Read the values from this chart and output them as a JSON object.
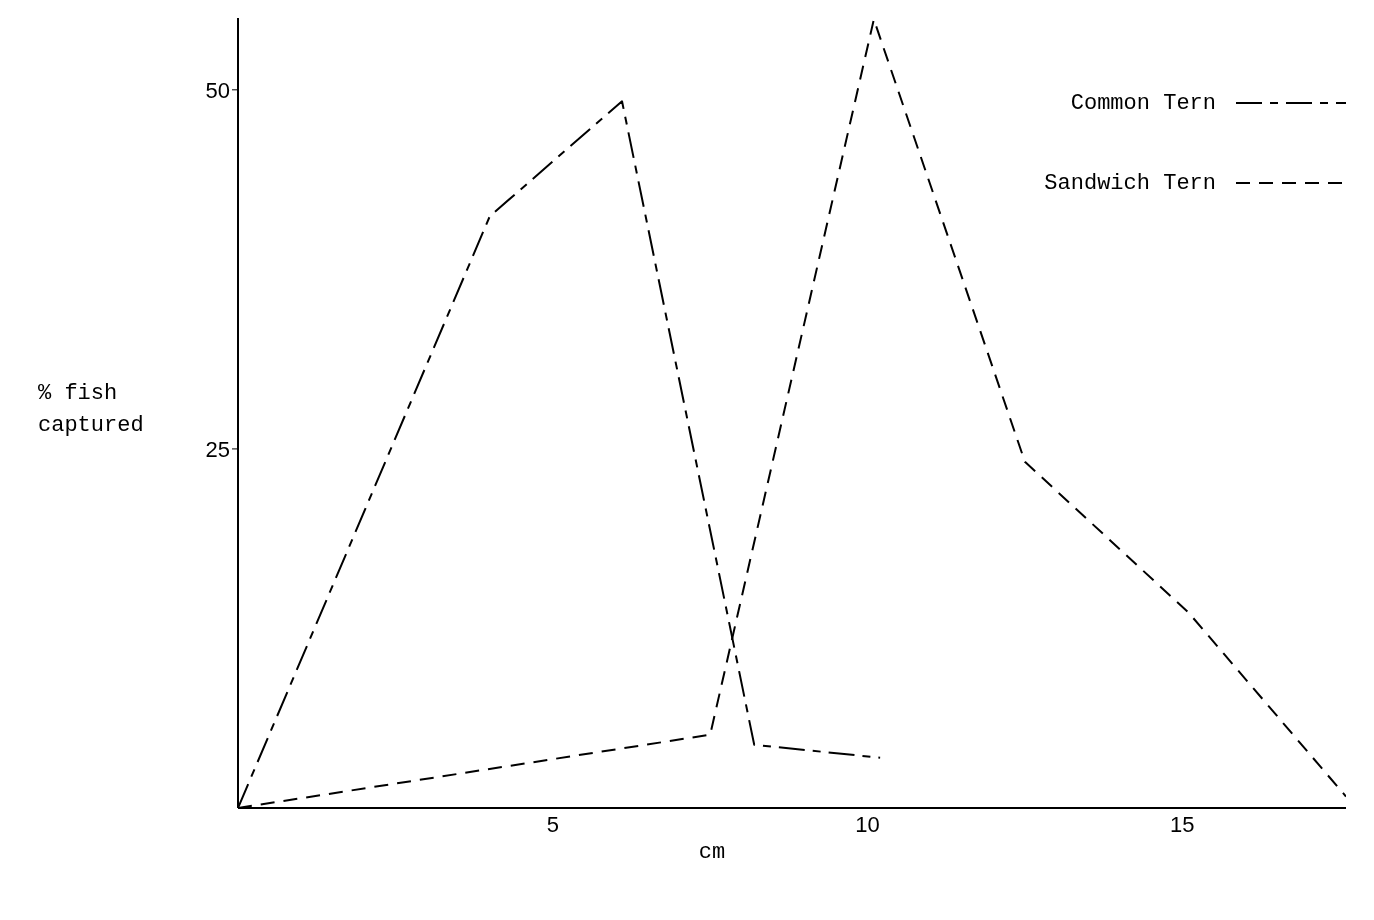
{
  "chart_data": {
    "type": "line",
    "xlabel": "cm",
    "ylabel": "% fish captured",
    "xlim": [
      0,
      17.6
    ],
    "xticks": [
      5,
      10,
      15
    ],
    "ylim": [
      0,
      55
    ],
    "yticks": [
      25,
      50
    ],
    "legend": "top right",
    "line_style": "dashed",
    "series": [
      {
        "name": "Common Tern",
        "color": "#000000",
        "x": [
          0,
          4.0,
          6.1,
          8.2,
          10.2
        ],
        "values": [
          0,
          41.2,
          49.2,
          4.4,
          3.5
        ]
      },
      {
        "name": "Sandwich Tern",
        "color": "#000000",
        "x": [
          0,
          7.5,
          10.1,
          12.5,
          15.1,
          17.6
        ],
        "values": [
          0,
          5.1,
          54.9,
          24.1,
          13.6,
          0.8
        ]
      }
    ]
  }
}
